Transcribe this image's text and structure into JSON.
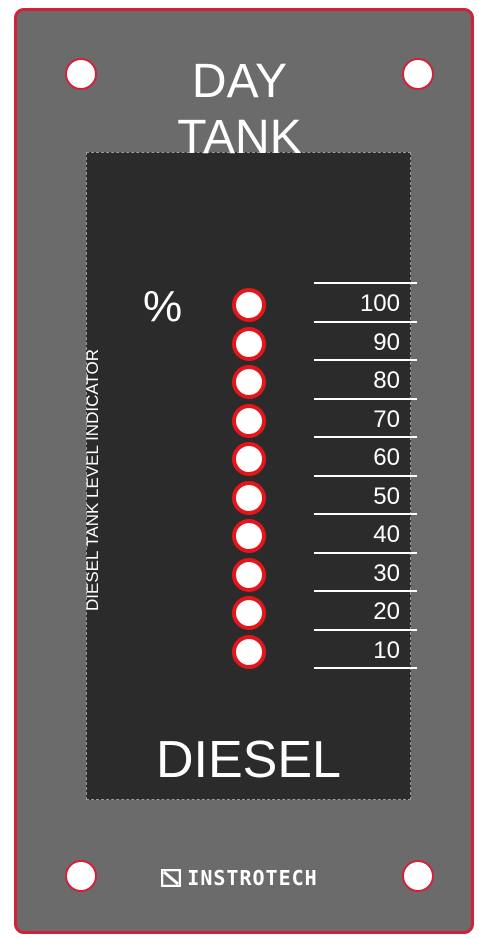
{
  "panel": {
    "title_line1": "DAY",
    "title_line2": "TANK",
    "vertical_label": "DIESEL TANK LEVEL INDICATOR",
    "percent_symbol": "%",
    "fuel_label": "DIESEL",
    "brand": "INSTROTECH",
    "brand_icon": "slash-box-logo-icon"
  },
  "scale": {
    "levels": [
      "100",
      "90",
      "80",
      "70",
      "60",
      "50",
      "40",
      "30",
      "20",
      "10"
    ]
  },
  "colors": {
    "panel": "#6b6b6b",
    "inner": "#2b2b2b",
    "accent_red": "#d22038",
    "led_ring": "#e5151c",
    "led_fill": "#ffffff"
  }
}
